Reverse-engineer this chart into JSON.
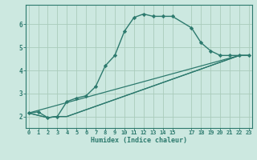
{
  "title": "",
  "xlabel": "Humidex (Indice chaleur)",
  "bg_color": "#cce8e0",
  "line_color": "#2d7a6e",
  "grid_color": "#aaccbb",
  "xticks": [
    0,
    1,
    2,
    3,
    4,
    5,
    6,
    7,
    8,
    9,
    10,
    11,
    12,
    13,
    14,
    15,
    17,
    18,
    19,
    20,
    21,
    22,
    23
  ],
  "yticks": [
    2,
    3,
    4,
    5,
    6
  ],
  "xlim": [
    -0.3,
    23.3
  ],
  "ylim": [
    1.5,
    6.85
  ],
  "lines": [
    {
      "x": [
        0,
        1,
        2,
        3,
        4,
        5,
        6,
        7,
        8,
        9,
        10,
        11,
        12,
        13,
        14,
        15,
        17,
        18,
        19,
        20,
        21,
        22,
        23
      ],
      "y": [
        2.15,
        2.2,
        1.95,
        2.0,
        2.65,
        2.8,
        2.9,
        3.3,
        4.2,
        4.65,
        5.7,
        6.3,
        6.45,
        6.35,
        6.35,
        6.35,
        5.85,
        5.2,
        4.85,
        4.65,
        4.65,
        4.65,
        4.65
      ],
      "marker": "D",
      "ms": 2.2,
      "lw": 1.0
    },
    {
      "x": [
        0,
        2,
        3,
        4,
        22,
        23
      ],
      "y": [
        2.15,
        1.95,
        2.0,
        2.0,
        4.65,
        4.65
      ],
      "marker": null,
      "ms": 0,
      "lw": 0.9
    },
    {
      "x": [
        0,
        2,
        3,
        4,
        22,
        23
      ],
      "y": [
        2.15,
        1.95,
        2.0,
        2.0,
        4.65,
        4.65
      ],
      "marker": null,
      "ms": 0,
      "lw": 0.9
    },
    {
      "x": [
        0,
        22,
        23
      ],
      "y": [
        2.15,
        4.65,
        4.65
      ],
      "marker": null,
      "ms": 0,
      "lw": 0.9
    }
  ]
}
